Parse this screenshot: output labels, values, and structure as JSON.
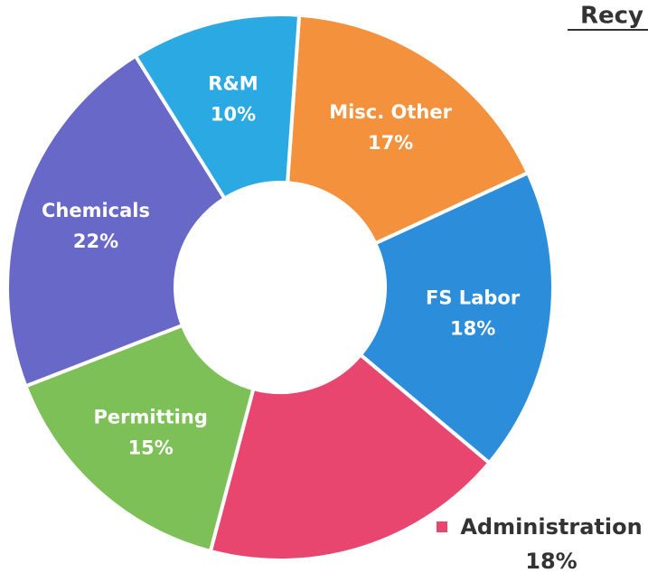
{
  "chart_data": {
    "type": "donut",
    "title": "Recy",
    "categories": [
      "Misc. Other",
      "FS Labor",
      "Administration",
      "Permitting",
      "Chemicals",
      "R&M"
    ],
    "values": [
      17,
      18,
      18,
      15,
      22,
      10
    ],
    "value_labels": [
      "17%",
      "18%",
      "18%",
      "15%",
      "22%",
      "10%"
    ],
    "colors": [
      "#f4913c",
      "#2c8ddb",
      "#e8456f",
      "#7cc057",
      "#6868c8",
      "#2aa9e2"
    ]
  }
}
